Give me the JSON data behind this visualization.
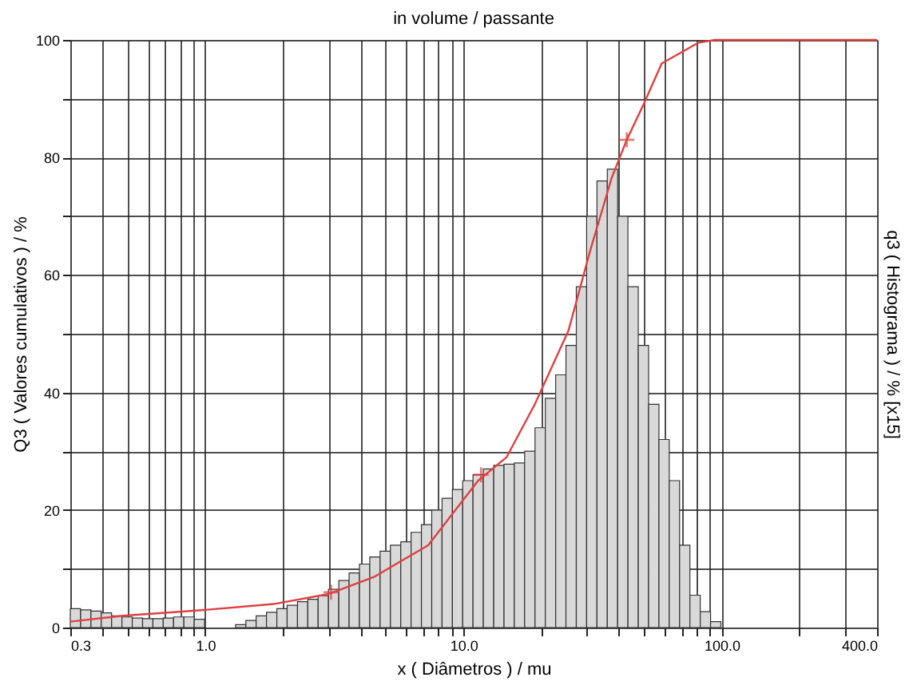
{
  "chart_data": {
    "type": "histogram",
    "title": "in volume / passante",
    "xlabel": "x ( Diâmetros ) / mu",
    "ylabel": "Q3 ( Valores cumulativos ) / %",
    "y2label": "q3 ( Histograma ) / % [x15]",
    "log": "x",
    "grid": true,
    "xlim": [
      0.3,
      400
    ],
    "ylim": [
      0,
      100
    ],
    "xticks": [
      0.3,
      {
        "value": 0.4,
        "label": null
      },
      {
        "value": 0.5,
        "label": null
      },
      {
        "value": 0.6,
        "label": null
      },
      {
        "value": 0.7,
        "label": null
      },
      {
        "value": 0.8,
        "label": null
      },
      {
        "value": 0.9,
        "label": null
      },
      {
        "value": 1,
        "label": "1.0"
      },
      {
        "value": 2,
        "label": null
      },
      {
        "value": 3,
        "label": null
      },
      {
        "value": 4,
        "label": null
      },
      {
        "value": 5,
        "label": null
      },
      {
        "value": 6,
        "label": null
      },
      {
        "value": 7,
        "label": null
      },
      {
        "value": 8,
        "label": null
      },
      {
        "value": 9,
        "label": null
      },
      {
        "value": 10,
        "label": "10.0"
      },
      {
        "value": 20,
        "label": null
      },
      {
        "value": 30,
        "label": null
      },
      {
        "value": 40,
        "label": null
      },
      {
        "value": 50,
        "label": null
      },
      {
        "value": 60,
        "label": null
      },
      {
        "value": 70,
        "label": null
      },
      {
        "value": 80,
        "label": null
      },
      {
        "value": 90,
        "label": null
      },
      {
        "value": 100,
        "label": "100.0"
      },
      {
        "value": 200,
        "label": null
      },
      {
        "value": 300,
        "label": null
      },
      {
        "value": 400,
        "label": "400.0"
      }
    ],
    "yticks": [
      0,
      {
        "value": 10,
        "label": null
      },
      20,
      {
        "value": 30,
        "label": null
      },
      40,
      {
        "value": 50,
        "label": null
      },
      60,
      {
        "value": 70,
        "label": null
      },
      80,
      {
        "value": 90,
        "label": null
      },
      100
    ],
    "series": [
      {
        "color": "#d9d9d9",
        "bins": [
          0.3,
          0.329,
          0.3607,
          0.3955,
          0.4336,
          0.4755,
          0.5213,
          0.5717,
          0.6268,
          0.6873,
          0.7536,
          0.8263,
          0.906,
          0.9934,
          1.089,
          1.194,
          1.31,
          1.436,
          1.574,
          1.726,
          1.893,
          2.075,
          2.276,
          2.495,
          2.736,
          3.0,
          3.29,
          3.607,
          3.955,
          4.336,
          4.755,
          5.213,
          5.717,
          6.268,
          6.873,
          7.536,
          8.263,
          9.06,
          9.934,
          10.89,
          11.94,
          13.1,
          14.36,
          15.74,
          17.26,
          18.93,
          20.75,
          22.76,
          24.95,
          27.36,
          30,
          32.9,
          36.07,
          39.55,
          43.36,
          47.55,
          52.13,
          57.17,
          62.68,
          68.73,
          75.36,
          82.63,
          90.6,
          99.34
        ],
        "values": [
          3.2,
          3.0,
          2.8,
          2.5,
          2.0,
          1.8,
          1.6,
          1.5,
          1.5,
          1.6,
          1.8,
          1.8,
          1.4,
          null,
          null,
          null,
          0.5,
          1.2,
          2.0,
          2.6,
          3.2,
          3.8,
          4.4,
          4.8,
          5.4,
          6.5,
          8,
          9.3,
          10.8,
          12,
          13,
          14,
          14.6,
          16.2,
          17.5,
          20,
          22,
          23.5,
          25,
          26,
          27,
          27.6,
          27.8,
          28,
          30,
          34,
          39,
          43,
          48,
          58,
          70,
          76,
          78,
          70,
          58,
          48,
          38,
          32,
          25,
          14,
          5.5,
          2.7,
          1.0
        ]
      },
      {
        "type": "line",
        "color": "#e04040",
        "marker": "none",
        "x": [
          0.3,
          0.48,
          1.0,
          1.84,
          3.0,
          4.5,
          7.3,
          11.4,
          14.7,
          18.9,
          25.5,
          30.9,
          37.5,
          42.9,
          49.8,
          58.6,
          81,
          94,
          400
        ],
        "values": [
          1.0,
          2.0,
          3.0,
          4.0,
          5.7,
          8.6,
          14,
          25,
          29,
          38,
          50.5,
          64,
          76.5,
          83,
          89,
          96,
          99.5,
          100,
          100
        ]
      },
      {
        "type": "scatter",
        "color": "#e04040",
        "marker": "cross",
        "x": [
          3.07,
          11.7,
          42.9
        ],
        "values": [
          6,
          26,
          83
        ]
      }
    ]
  }
}
